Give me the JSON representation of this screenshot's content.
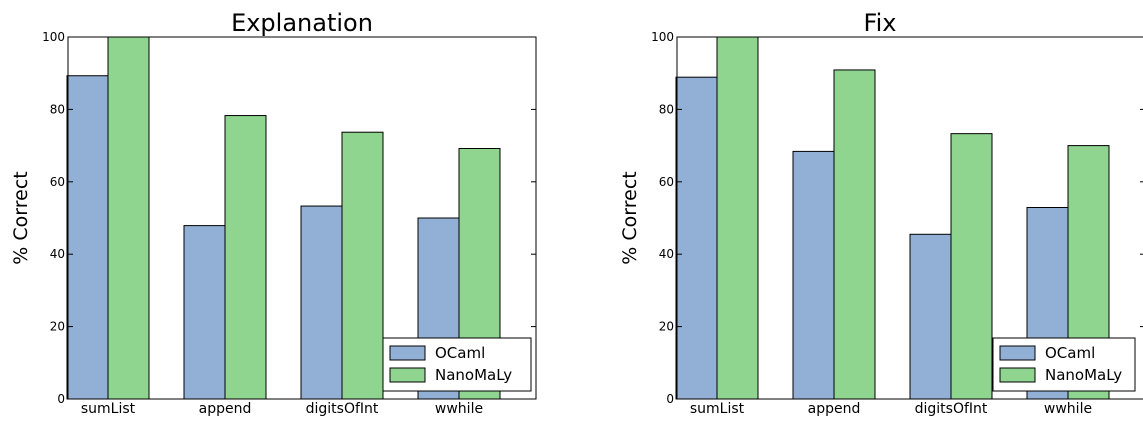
{
  "chart_data": [
    {
      "type": "bar",
      "title": "Explanation",
      "xlabel": "",
      "ylabel": "% Correct",
      "ylim": [
        0,
        100
      ],
      "yticks": [
        0,
        20,
        40,
        60,
        80,
        100
      ],
      "grid": false,
      "legend_position": "lower-right",
      "categories": [
        "sumList",
        "append",
        "digitsOfInt",
        "wwhile"
      ],
      "series": [
        {
          "name": "OCaml",
          "color": "#92b0d5",
          "values": [
            89.3,
            47.9,
            53.3,
            50.0
          ]
        },
        {
          "name": "NanoMaLy",
          "color": "#8fd48f",
          "values": [
            100.0,
            78.3,
            73.7,
            69.2
          ]
        }
      ]
    },
    {
      "type": "bar",
      "title": "Fix",
      "xlabel": "",
      "ylabel": "% Correct",
      "ylim": [
        0,
        100
      ],
      "yticks": [
        0,
        20,
        40,
        60,
        80,
        100
      ],
      "grid": false,
      "legend_position": "lower-right",
      "categories": [
        "sumList",
        "append",
        "digitsOfInt",
        "wwhile"
      ],
      "series": [
        {
          "name": "OCaml",
          "color": "#92b0d5",
          "values": [
            88.9,
            68.4,
            45.5,
            52.9
          ]
        },
        {
          "name": "NanoMaLy",
          "color": "#8fd48f",
          "values": [
            100.0,
            90.9,
            73.3,
            70.0
          ]
        }
      ]
    }
  ]
}
